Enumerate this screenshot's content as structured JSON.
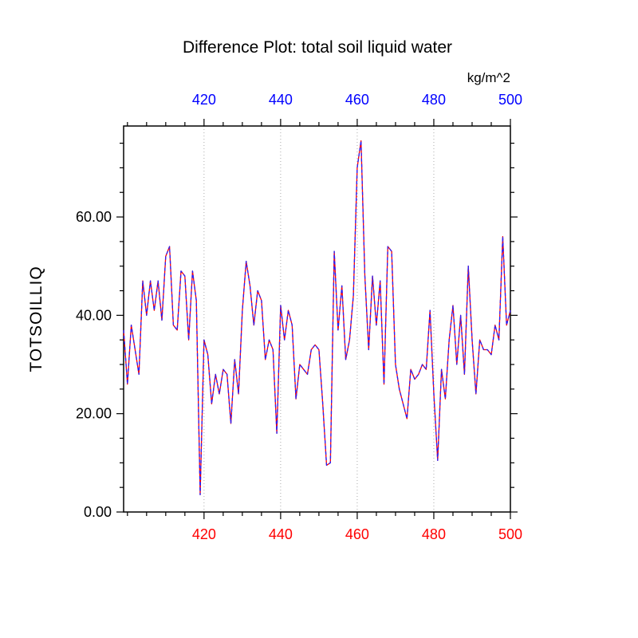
{
  "chart_data": {
    "type": "line",
    "title": "Difference Plot: total soil liquid water",
    "ylabel": "TOTSOILLIQ",
    "top_axis_unit": "kg/m^2",
    "xlim": [
      399,
      500
    ],
    "ylim": [
      0,
      78.5
    ],
    "x_ticks": [
      420,
      440,
      460,
      480,
      500
    ],
    "x_tick_labels": [
      "420",
      "440",
      "460",
      "480",
      "500"
    ],
    "y_ticks": [
      0,
      20,
      40,
      60
    ],
    "y_tick_labels": [
      "0.00",
      "20.00",
      "40.00",
      "60.00"
    ],
    "x_minor_step": 5,
    "y_minor_step": 5,
    "grid_x": [
      420,
      440,
      460,
      480
    ],
    "grid_style": "dotted",
    "legend": "none",
    "colors": {
      "bottom_tick_labels": "#ff0000",
      "top_tick_labels": "#0000ff",
      "left_tick_labels": "#000000",
      "line_solid": "#ff0000",
      "line_dashed": "#2222ff",
      "grid": "#aaaaaa",
      "frame": "#000000"
    },
    "x": [
      399,
      400,
      401,
      402,
      403,
      404,
      405,
      406,
      407,
      408,
      409,
      410,
      411,
      412,
      413,
      414,
      415,
      416,
      417,
      418,
      419,
      420,
      421,
      422,
      423,
      424,
      425,
      426,
      427,
      428,
      429,
      430,
      431,
      432,
      433,
      434,
      435,
      436,
      437,
      438,
      439,
      440,
      441,
      442,
      443,
      444,
      445,
      446,
      447,
      448,
      449,
      450,
      451,
      452,
      453,
      454,
      455,
      456,
      457,
      458,
      459,
      460,
      461,
      462,
      463,
      464,
      465,
      466,
      467,
      468,
      469,
      470,
      471,
      472,
      473,
      474,
      475,
      476,
      477,
      478,
      479,
      480,
      481,
      482,
      483,
      484,
      485,
      486,
      487,
      488,
      489,
      490,
      491,
      492,
      493,
      494,
      495,
      496,
      497,
      498,
      499,
      500
    ],
    "values": [
      37,
      26,
      38,
      33,
      28,
      47,
      40,
      47,
      41,
      47,
      39,
      52,
      54,
      38,
      37,
      49,
      48,
      35,
      49,
      43,
      3.5,
      35,
      32,
      22,
      28,
      24,
      29,
      28,
      18,
      31,
      24,
      41,
      51,
      46,
      38,
      45,
      43,
      31,
      35,
      33,
      16,
      42,
      35,
      41,
      38,
      23,
      30,
      29,
      28,
      33,
      34,
      33,
      22,
      9.5,
      10,
      53,
      37,
      46,
      31,
      35,
      44,
      70,
      75.5,
      48,
      33,
      48,
      38,
      47,
      26,
      54,
      53,
      30,
      25,
      22,
      19,
      29,
      27,
      28,
      30,
      29,
      41,
      24,
      10.5,
      29,
      23,
      35,
      42,
      30,
      40,
      28,
      50,
      35,
      24,
      35,
      33,
      33,
      32,
      38,
      35,
      56,
      38,
      41
    ],
    "lines": [
      {
        "name": "line-solid",
        "color": "#ff0000",
        "dash": null
      },
      {
        "name": "line-dashed",
        "color": "#2222ff",
        "dash": "4 3"
      }
    ]
  }
}
